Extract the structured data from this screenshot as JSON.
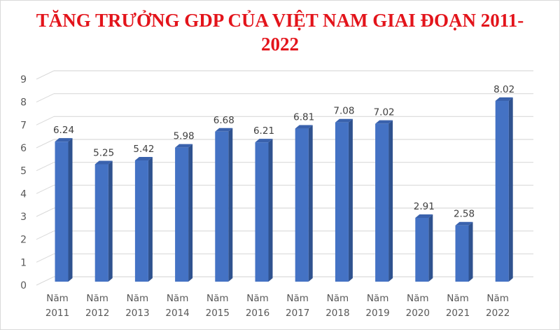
{
  "chart_data": {
    "type": "bar",
    "style": "3d-column",
    "title": "TĂNG TRƯỞNG GDP CỦA VIỆT NAM GIAI ĐOẠN 2011-2022",
    "title_lines": [
      "TĂNG TRƯỞNG GDP CỦA VIỆT NAM GIAI ĐOẠN 2011-",
      "2022"
    ],
    "xlabel": "",
    "ylabel": "",
    "categories": [
      "Năm 2011",
      "Năm 2012",
      "Năm 2013",
      "Năm 2014",
      "Năm 2015",
      "Năm 2016",
      "Năm 2017",
      "Năm 2018",
      "Năm 2019",
      "Năm 2020",
      "Năm 2021",
      "Năm 2022"
    ],
    "category_lines": [
      [
        "Năm",
        "2011"
      ],
      [
        "Năm",
        "2012"
      ],
      [
        "Năm",
        "2013"
      ],
      [
        "Năm",
        "2014"
      ],
      [
        "Năm",
        "2015"
      ],
      [
        "Năm",
        "2016"
      ],
      [
        "Năm",
        "2017"
      ],
      [
        "Năm",
        "2018"
      ],
      [
        "Năm",
        "2019"
      ],
      [
        "Năm",
        "2020"
      ],
      [
        "Năm",
        "2021"
      ],
      [
        "Năm",
        "2022"
      ]
    ],
    "values": [
      6.24,
      5.25,
      5.42,
      5.98,
      6.68,
      6.21,
      6.81,
      7.08,
      7.02,
      2.91,
      2.58,
      8.02
    ],
    "data_labels": [
      "6.24",
      "5.25",
      "5.42",
      "5.98",
      "6.68",
      "6.21",
      "6.81",
      "7.08",
      "7.02",
      "2.91",
      "2.58",
      "8.02"
    ],
    "ylim": [
      0,
      9
    ],
    "yticks": [
      0,
      1,
      2,
      3,
      4,
      5,
      6,
      7,
      8,
      9
    ],
    "grid": true,
    "legend": null,
    "colors": {
      "title": "#e3141b",
      "bar_front": "#4472c4",
      "bar_side": "#2f528f",
      "bar_top": "#3a62ad",
      "grid": "#d9d9d9",
      "tick_text": "#595959",
      "label_text": "#404040"
    }
  }
}
